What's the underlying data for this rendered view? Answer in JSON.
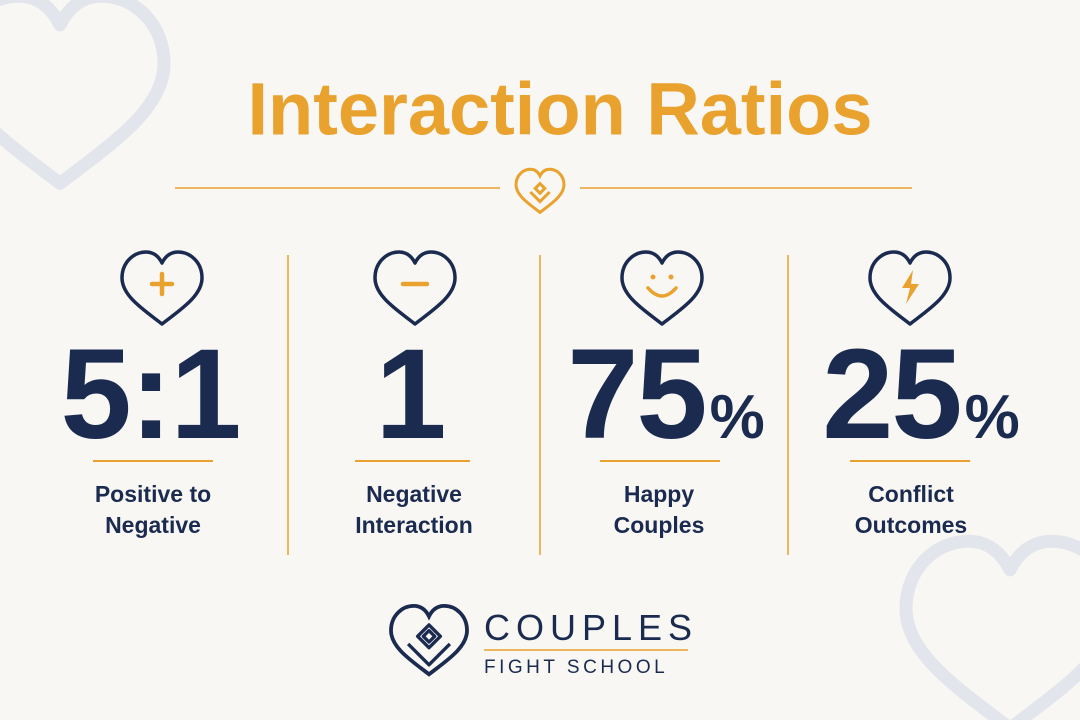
{
  "header": {
    "title": "Interaction Ratios"
  },
  "stats": [
    {
      "number": "5:1",
      "label": [
        "Positive to",
        "Negative"
      ]
    },
    {
      "number": "1",
      "label": [
        "Negative",
        "Interaction"
      ]
    },
    {
      "number": "75",
      "unit": "%",
      "label": [
        "Happy",
        "Couples"
      ]
    },
    {
      "number": "25",
      "unit": "%",
      "label": [
        "Conflict",
        "Outcomes"
      ]
    }
  ],
  "brand": {
    "name": "COUPLES",
    "tagline": "FIGHT SCHOOL"
  }
}
